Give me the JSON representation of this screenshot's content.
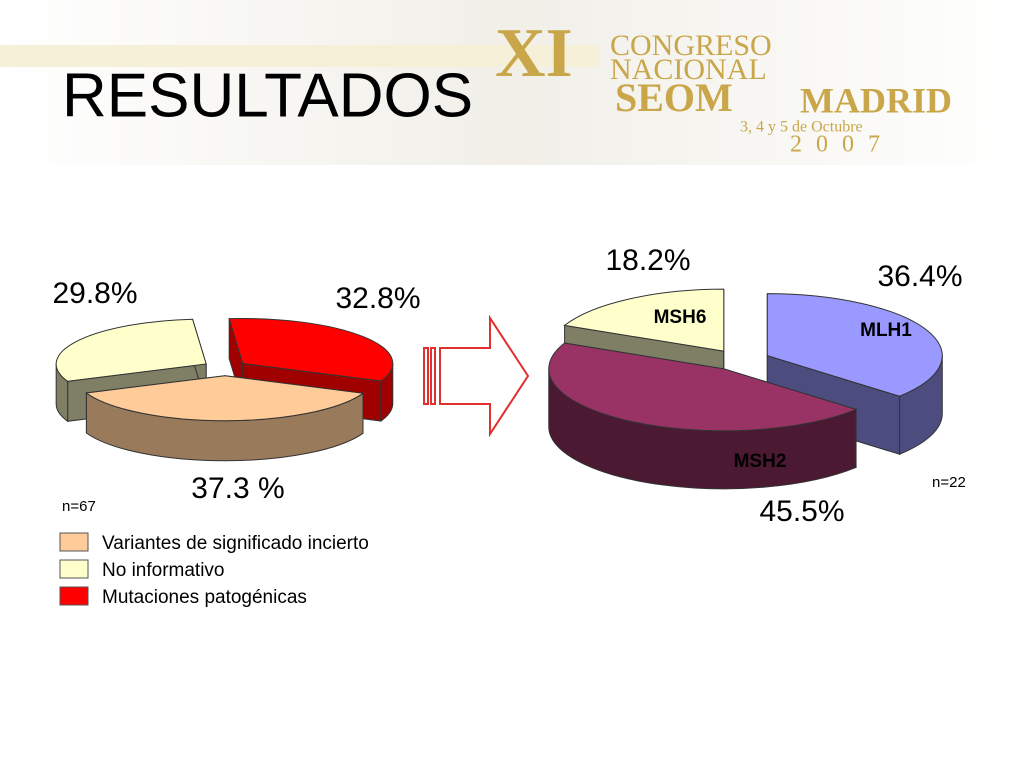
{
  "title": "RESULTADOS",
  "logo": {
    "roman": "XI",
    "line1": "CONGRESO",
    "line2": "NACIONAL",
    "society": "SEOM",
    "city": "MADRID",
    "dates": "3, 4 y 5 de Octubre",
    "year": "2007"
  },
  "chart_data": [
    {
      "type": "pie",
      "categories": [
        "Variantes de significado incierto",
        "No informativo",
        "Mutaciones patogénicas"
      ],
      "values": [
        37.3,
        29.8,
        32.8
      ],
      "value_labels": [
        "37.3 %",
        "29.8%",
        "32.8%"
      ],
      "colors": [
        "#ffcc99",
        "#ffffcc",
        "#ff0000"
      ],
      "annotation": "n=67",
      "legend": true
    },
    {
      "type": "pie",
      "categories": [
        "MLH1",
        "MSH2",
        "MSH6"
      ],
      "values": [
        36.4,
        45.5,
        18.2
      ],
      "value_labels": [
        "36.4%",
        "45.5%",
        "18.2%"
      ],
      "colors": [
        "#9999ff",
        "#993366",
        "#ffffcc"
      ],
      "annotation": "n=22",
      "legend": false
    }
  ]
}
